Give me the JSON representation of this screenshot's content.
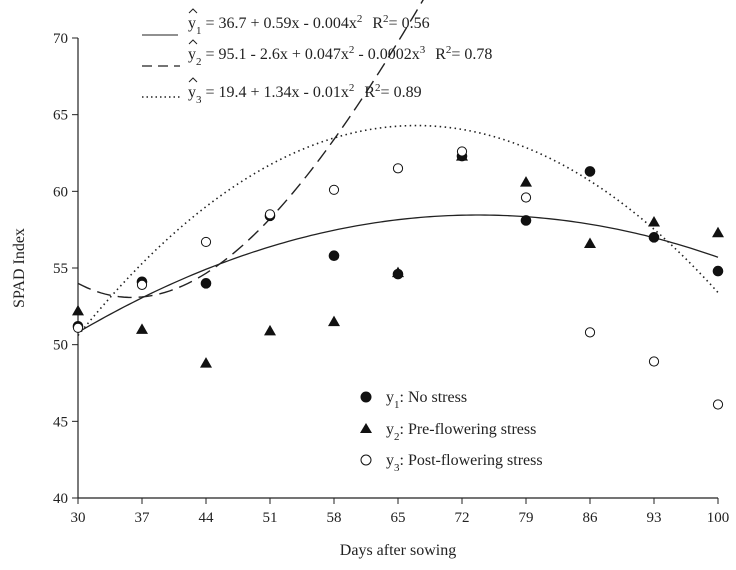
{
  "chart_data": {
    "type": "scatter",
    "xlabel": "Days after sowing",
    "ylabel": "SPAD Index",
    "xlim": [
      30,
      100
    ],
    "ylim": [
      40,
      70
    ],
    "x_ticks": [
      "30",
      "37",
      "44",
      "51",
      "58",
      "65",
      "72",
      "79",
      "86",
      "93",
      "100"
    ],
    "y_ticks": [
      "40",
      "45",
      "50",
      "55",
      "60",
      "65",
      "70"
    ],
    "grid": false,
    "legend_position": "bottom-center",
    "x": [
      30,
      37,
      44,
      51,
      58,
      65,
      72,
      79,
      86,
      93,
      100
    ],
    "series": [
      {
        "name": "No stress",
        "legend_label": "y1: No stress",
        "legend_var": "y",
        "legend_sub": "1",
        "legend_desc": ": No stress",
        "marker": "filled-circle",
        "line_style": "solid",
        "values": [
          51.2,
          54.1,
          54.0,
          58.4,
          55.8,
          54.6,
          62.3,
          58.1,
          61.3,
          57.0,
          54.8
        ],
        "fit": {
          "prefix": "y",
          "sub": "1",
          "equation": " = 36.7 + 0.59x - 0.004x",
          "eq_exp": "2",
          "r2_label": "R",
          "r2_exp": "2",
          "r2_value": "= 0.56",
          "coefficients": [
            36.7,
            0.59,
            -0.004
          ]
        }
      },
      {
        "name": "Pre-flowering stress",
        "legend_label": "y2: Pre-flowering stress",
        "legend_var": "y",
        "legend_sub": "2",
        "legend_desc": ": Pre-flowering stress",
        "marker": "filled-triangle",
        "line_style": "dashed",
        "values": [
          52.2,
          51.0,
          48.8,
          50.9,
          51.5,
          54.7,
          62.3,
          60.6,
          56.6,
          58.0,
          57.3
        ],
        "fit": {
          "prefix": "y",
          "sub": "2",
          "equation": " = 95.1 - 2.6x + 0.047x",
          "eq_mid_exp": "2",
          "equation_tail": " - 0.0002x",
          "eq_exp": "3",
          "r2_label": "R",
          "r2_exp": "2",
          "r2_value": "= 0.78",
          "coefficients": [
            95.1,
            -2.6,
            0.047,
            -0.0002
          ]
        }
      },
      {
        "name": "Post-flowering stress",
        "legend_label": "y3: Post-flowering stress",
        "legend_var": "y",
        "legend_sub": "3",
        "legend_desc": ": Post-flowering stress",
        "marker": "open-circle",
        "line_style": "dotted",
        "values": [
          51.1,
          53.9,
          56.7,
          58.5,
          60.1,
          61.5,
          62.6,
          59.6,
          50.8,
          48.9,
          46.1
        ],
        "fit": {
          "prefix": "y",
          "sub": "3",
          "equation": " = 19.4 + 1.34x - 0.01x",
          "eq_exp": "2",
          "r2_label": "R",
          "r2_exp": "2",
          "r2_value": "= 0.89",
          "coefficients": [
            19.4,
            1.34,
            -0.01
          ]
        }
      }
    ]
  }
}
